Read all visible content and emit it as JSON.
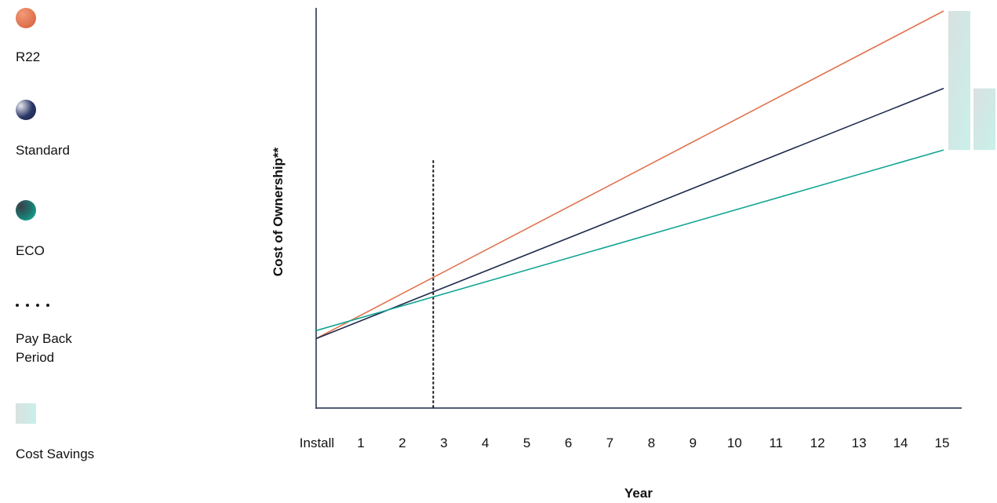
{
  "chart_data": {
    "type": "line",
    "title": "",
    "xlabel": "Year",
    "ylabel": "Cost of Ownership**",
    "categories": [
      "Install",
      "1",
      "2",
      "3",
      "4",
      "5",
      "6",
      "7",
      "8",
      "9",
      "10",
      "11",
      "12",
      "13",
      "14",
      "15"
    ],
    "x": [
      0,
      15
    ],
    "series": [
      {
        "name": "R22",
        "color": "#e0734f",
        "values": [
          17.5,
          100
        ]
      },
      {
        "name": "Standard",
        "color": "#1f2a4d",
        "values": [
          17.5,
          80.5
        ]
      },
      {
        "name": "ECO",
        "color": "#13a594",
        "values": [
          19.5,
          65
        ]
      }
    ],
    "payback_period": {
      "name": "Pay Back Period",
      "x": 2.8
    },
    "cost_savings": {
      "name": "Cost Savings",
      "bars": [
        {
          "from": 65,
          "to": 100
        },
        {
          "from": 65,
          "to": 80.5
        }
      ]
    },
    "ylim": [
      0,
      100
    ],
    "grid": false,
    "legend_position": "left"
  },
  "legend": {
    "items": [
      {
        "label": "R22",
        "icon": "orange-circle-icon"
      },
      {
        "label": "Standard",
        "icon": "navy-circle-icon"
      },
      {
        "label": "ECO",
        "icon": "teal-circle-icon"
      },
      {
        "label": "Pay Back Period",
        "icon": "dotted-line-icon"
      },
      {
        "label": "Cost Savings",
        "icon": "savings-bar-icon"
      }
    ]
  },
  "colors": {
    "r22": "#e0734f",
    "standard": "#1f2a4d",
    "eco": "#13a594",
    "axis": "#1a2a4a",
    "savings_start": "#d8e1e0",
    "savings_end": "#c9f0ea"
  }
}
